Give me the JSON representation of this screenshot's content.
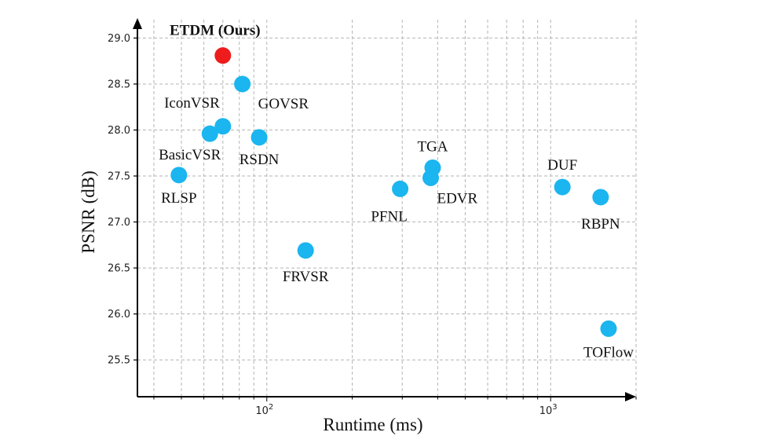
{
  "chart_data": {
    "type": "scatter",
    "title": "",
    "xlabel": "Runtime (ms)",
    "ylabel": "PSNR (dB)",
    "x_scale": "log",
    "xlim": [
      35,
      2000
    ],
    "ylim": [
      25.1,
      29.2
    ],
    "x_tick_labels": [
      {
        "value": 100,
        "base": "10",
        "exp": "2"
      },
      {
        "value": 1000,
        "base": "10",
        "exp": "3"
      }
    ],
    "y_ticks": [
      25.5,
      26.0,
      26.5,
      27.0,
      27.5,
      28.0,
      28.5,
      29.0
    ],
    "y_tick_labels": [
      "25.5",
      "26.0",
      "26.5",
      "27.0",
      "27.5",
      "28.0",
      "28.5",
      "29.0"
    ],
    "grid": true,
    "colors": {
      "ours": "#ee1c1c",
      "others": "#1bb5ef"
    },
    "points": [
      {
        "label": "ETDM (Ours)",
        "x": 70,
        "y": 28.81,
        "highlight": true
      },
      {
        "label": "GOVSR",
        "x": 82,
        "y": 28.5
      },
      {
        "label": "IconVSR",
        "x": 70,
        "y": 28.04
      },
      {
        "label": "BasicVSR",
        "x": 63,
        "y": 27.96
      },
      {
        "label": "RSDN",
        "x": 94,
        "y": 27.92
      },
      {
        "label": "RLSP",
        "x": 49,
        "y": 27.51
      },
      {
        "label": "FRVSR",
        "x": 137,
        "y": 26.69
      },
      {
        "label": "TGA",
        "x": 384,
        "y": 27.59
      },
      {
        "label": "EDVR",
        "x": 378,
        "y": 27.48
      },
      {
        "label": "PFNL",
        "x": 295,
        "y": 27.36
      },
      {
        "label": "DUF",
        "x": 1100,
        "y": 27.38
      },
      {
        "label": "RBPN",
        "x": 1500,
        "y": 27.27
      },
      {
        "label": "TOFlow",
        "x": 1600,
        "y": 25.84
      }
    ]
  }
}
